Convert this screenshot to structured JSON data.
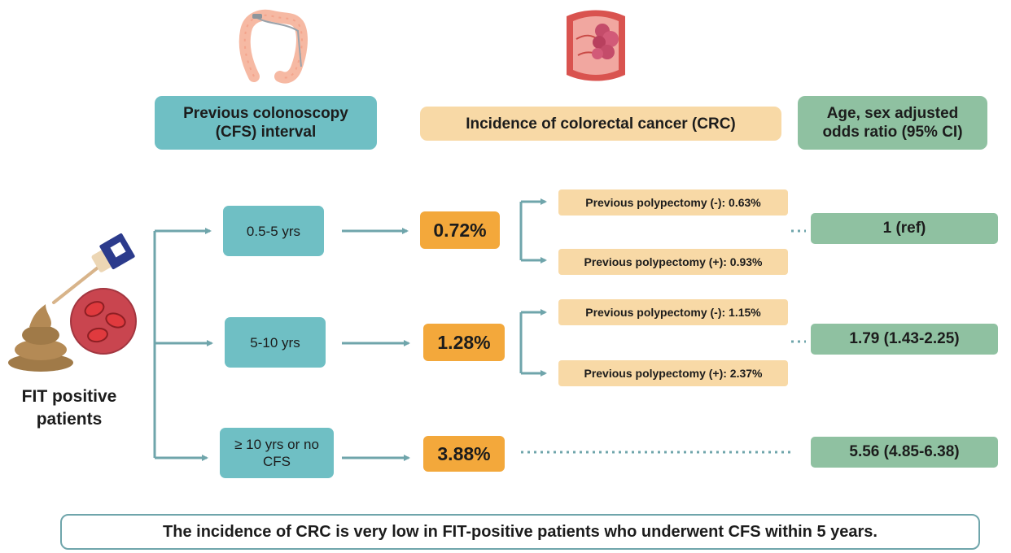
{
  "headers": {
    "interval": "Previous colonoscopy\n(CFS) interval",
    "incidence": "Incidence of colorectal cancer (CRC)",
    "odds": "Age, sex adjusted\nodds ratio (95% CI)"
  },
  "patients_label": "FIT positive\npatients",
  "groups": [
    {
      "interval": "0.5-5 yrs",
      "incidence": "0.72%",
      "polypectomy_neg": "Previous polypectomy (-): 0.63%",
      "polypectomy_pos": "Previous polypectomy (+): 0.93%",
      "odds_ratio": "1 (ref)"
    },
    {
      "interval": "5-10 yrs",
      "incidence": "1.28%",
      "polypectomy_neg": "Previous polypectomy (-): 1.15%",
      "polypectomy_pos": "Previous polypectomy (+): 2.37%",
      "odds_ratio": "1.79 (1.43-2.25)"
    },
    {
      "interval": "≥ 10 yrs or no CFS",
      "incidence": "3.88%",
      "odds_ratio": "5.56 (4.85-6.38)"
    }
  ],
  "conclusion": "The incidence of CRC is very low in FIT-positive patients who underwent CFS within 5 years.",
  "colors": {
    "teal": "#6fbfc4",
    "light_orange": "#f8d9a6",
    "orange": "#f3a83b",
    "green": "#8fc1a1",
    "connector": "#6fa5ab"
  },
  "icons": [
    "colon-icon",
    "tumor-icon",
    "fit-test-icon",
    "stool-icon",
    "blood-cells-icon"
  ]
}
